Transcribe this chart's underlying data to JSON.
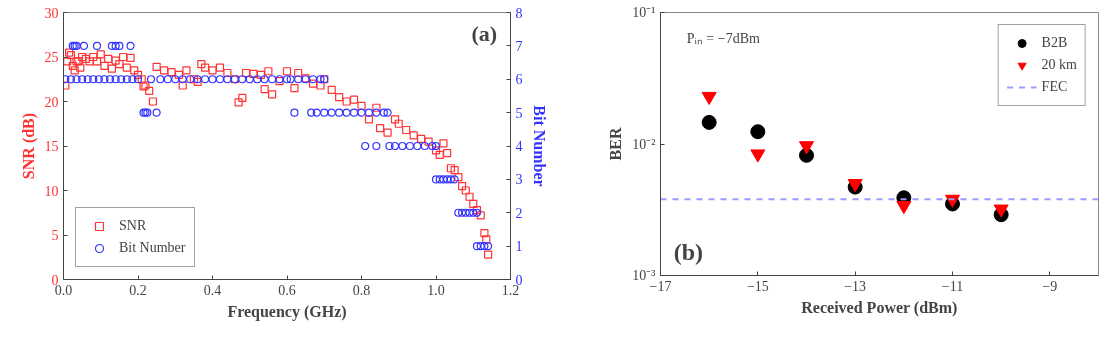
{
  "chart_data": [
    {
      "type": "scatter",
      "xlabel": "Frequency (GHz)",
      "ylabel": "SNR (dB)",
      "y2label": "Bit Number",
      "xlim": [
        0,
        1.2
      ],
      "xticks": [
        {
          "value": 0,
          "label": "0.0"
        },
        0.2,
        0.4,
        0.6,
        0.8,
        {
          "value": 1,
          "label": "1.0"
        },
        1.2
      ],
      "ylim": [
        0,
        30
      ],
      "yticks": [
        0,
        5,
        10,
        15,
        20,
        25,
        30
      ],
      "y2lim": [
        0,
        8
      ],
      "y2ticks": [
        0,
        1,
        2,
        3,
        4,
        5,
        6,
        7,
        8
      ],
      "legend": "bottom left",
      "annotations": [
        "(a)"
      ],
      "series": [
        {
          "name": "SNR",
          "color": "#ff3333",
          "marker": "square",
          "x": [
            0.005,
            0.01,
            0.015,
            0.02,
            0.025,
            0.03,
            0.035,
            0.04,
            0.045,
            0.05,
            0.06,
            0.07,
            0.08,
            0.09,
            0.1,
            0.11,
            0.12,
            0.13,
            0.14,
            0.15,
            0.16,
            0.17,
            0.18,
            0.19,
            0.2,
            0.21,
            0.215,
            0.22,
            0.23,
            0.24,
            0.25,
            0.27,
            0.29,
            0.31,
            0.32,
            0.33,
            0.35,
            0.36,
            0.37,
            0.38,
            0.4,
            0.42,
            0.44,
            0.46,
            0.47,
            0.48,
            0.49,
            0.51,
            0.53,
            0.54,
            0.55,
            0.56,
            0.58,
            0.6,
            0.62,
            0.63,
            0.65,
            0.67,
            0.69,
            0.7,
            0.72,
            0.74,
            0.76,
            0.78,
            0.8,
            0.82,
            0.84,
            0.85,
            0.87,
            0.89,
            0.9,
            0.92,
            0.94,
            0.96,
            0.98,
            1.0,
            1.01,
            1.02,
            1.03,
            1.04,
            1.05,
            1.06,
            1.07,
            1.08,
            1.09,
            1.1,
            1.11,
            1.12,
            1.13,
            1.135,
            1.14
          ],
          "values": [
            21.8,
            24.5,
            25.5,
            25.2,
            24.0,
            23.5,
            24.5,
            24.5,
            23.8,
            25.0,
            24.8,
            24.5,
            25.0,
            24.5,
            25.3,
            24.0,
            24.8,
            23.7,
            24.6,
            24.2,
            25.0,
            23.8,
            24.9,
            23.5,
            23.0,
            22.5,
            21.7,
            21.8,
            21.2,
            20.0,
            23.9,
            23.5,
            23.3,
            23.0,
            21.8,
            23.5,
            22.5,
            22.2,
            24.2,
            23.8,
            23.5,
            23.8,
            23.2,
            22.5,
            19.9,
            20.4,
            23.2,
            23.1,
            23.0,
            21.4,
            23.4,
            20.8,
            22.3,
            23.4,
            21.5,
            23.2,
            22.6,
            22.0,
            21.8,
            22.5,
            21.3,
            20.5,
            20.0,
            20.2,
            19.5,
            18.0,
            19.3,
            17.0,
            16.5,
            18.0,
            17.5,
            16.8,
            16.2,
            15.8,
            15.5,
            14.5,
            14.0,
            15.3,
            14.2,
            12.5,
            12.3,
            11.5,
            10.5,
            10.0,
            9.3,
            8.5,
            7.8,
            7.2,
            5.2,
            4.5,
            2.8
          ]
        },
        {
          "name": "Bit Number",
          "color": "#3333ff",
          "marker": "circle",
          "axis": "y2",
          "x": [
            0.005,
            0.02,
            0.025,
            0.03,
            0.035,
            0.035,
            0.05,
            0.055,
            0.065,
            0.08,
            0.09,
            0.095,
            0.11,
            0.125,
            0.13,
            0.14,
            0.14,
            0.15,
            0.155,
            0.17,
            0.18,
            0.185,
            0.2,
            0.215,
            0.22,
            0.225,
            0.235,
            0.25,
            0.26,
            0.28,
            0.3,
            0.32,
            0.34,
            0.36,
            0.38,
            0.4,
            0.42,
            0.44,
            0.46,
            0.48,
            0.5,
            0.52,
            0.54,
            0.56,
            0.58,
            0.6,
            0.61,
            0.62,
            0.63,
            0.65,
            0.665,
            0.67,
            0.68,
            0.69,
            0.7,
            0.7,
            0.72,
            0.74,
            0.76,
            0.78,
            0.8,
            0.81,
            0.82,
            0.84,
            0.84,
            0.86,
            0.87,
            0.875,
            0.89,
            0.91,
            0.93,
            0.95,
            0.97,
            0.99,
            1.0,
            1.0,
            1.01,
            1.02,
            1.03,
            1.04,
            1.05,
            1.06,
            1.07,
            1.08,
            1.09,
            1.1,
            1.11,
            1.11,
            1.12,
            1.13,
            1.14
          ],
          "values": [
            6,
            6,
            7,
            7,
            7,
            6,
            6,
            7,
            6,
            6,
            7,
            6,
            6,
            6,
            7,
            7,
            6,
            7,
            6,
            6,
            7,
            6,
            6,
            5,
            5,
            5,
            6,
            5,
            6,
            6,
            6,
            6,
            6,
            6,
            6,
            6,
            6,
            6,
            6,
            6,
            6,
            6,
            6,
            6,
            6,
            6,
            6,
            5,
            6,
            6,
            5,
            6,
            5,
            6,
            6,
            5,
            5,
            5,
            5,
            5,
            5,
            4,
            5,
            4,
            5,
            5,
            5,
            4,
            4,
            4,
            4,
            4,
            4,
            4,
            4,
            3,
            3,
            3,
            3,
            3,
            3,
            2,
            2,
            2,
            2,
            2,
            2,
            1,
            1,
            1,
            1
          ]
        }
      ]
    },
    {
      "type": "scatter",
      "xlabel": "Received Power (dBm)",
      "ylabel": "BER",
      "log": "y",
      "xlim": [
        -17,
        -8
      ],
      "xticks": [
        -17,
        -15,
        -13,
        -11,
        -9
      ],
      "ylim": [
        0.001,
        0.1
      ],
      "yticks": [
        {
          "value": 0.001,
          "label": "10⁻³"
        },
        {
          "value": 0.01,
          "label": "10⁻²"
        },
        {
          "value": 0.1,
          "label": "10⁻¹"
        }
      ],
      "legend": "top right",
      "annotations": [
        "Pᵢₙ = −7dBm",
        "(b)"
      ],
      "series": [
        {
          "name": "B2B",
          "color": "#000000",
          "marker": "circle",
          "x": [
            -16,
            -15,
            -14,
            -13,
            -12,
            -11,
            -10
          ],
          "values": [
            0.0146,
            0.0124,
            0.0082,
            0.0047,
            0.0039,
            0.0035,
            0.0029
          ]
        },
        {
          "name": "20 km",
          "color": "#ff0000",
          "marker": "triangle",
          "x": [
            -16,
            -15,
            -14,
            -13,
            -12,
            -11,
            -10
          ],
          "values": [
            0.023,
            0.0084,
            0.0097,
            0.005,
            0.0034,
            0.0038,
            0.0032
          ]
        }
      ],
      "ref_lines": [
        {
          "axis": "y",
          "value": 0.0038,
          "label": "FEC",
          "color": "#9999ff",
          "line_style": "dashed"
        }
      ]
    }
  ]
}
